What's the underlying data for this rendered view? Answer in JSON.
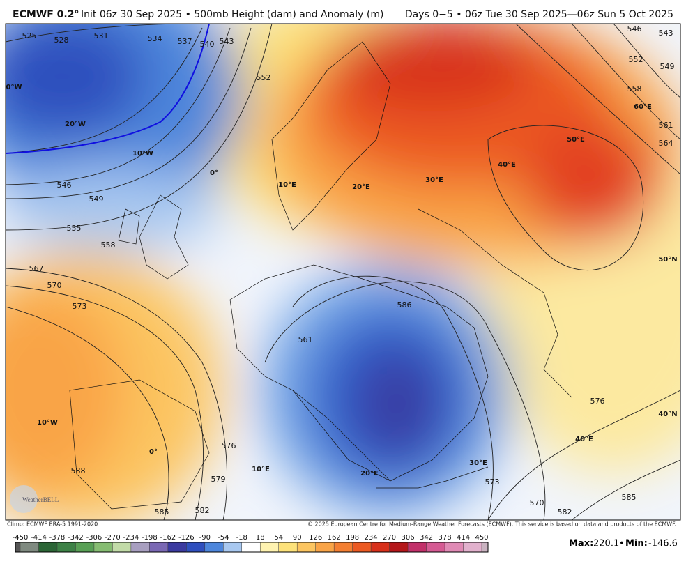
{
  "header": {
    "model": "ECMWF 0.2°",
    "subtitle": "Init 06z 30 Sep 2025 • 500mb Height (dam) and Anomaly (m)",
    "valid": "Days 0−5 • 06z Tue 30 Sep 2025—06z Sun 5 Oct 2025"
  },
  "map": {
    "contour_labels": [
      "525",
      "528",
      "531",
      "534",
      "537",
      "540",
      "543",
      "552",
      "546",
      "549",
      "555",
      "558",
      "567",
      "570",
      "573",
      "561",
      "586",
      "576",
      "579",
      "582",
      "585",
      "588",
      "573",
      "576",
      "570",
      "582",
      "585",
      "546",
      "543",
      "552",
      "549",
      "558",
      "561",
      "564"
    ],
    "graticule_labels": [
      "0°W",
      "20°W",
      "10°W",
      "0°",
      "10°E",
      "20°E",
      "30°E",
      "40°E",
      "50°E",
      "60°E",
      "50°N",
      "40°N",
      "10°W",
      "0°",
      "10°E",
      "20°E",
      "30°E",
      "40°E"
    ],
    "logo": "WeatherBELL"
  },
  "footer": {
    "climo": "Climo: ECMWF ERA-5 1991-2020",
    "copyright": "© 2025 European Centre for Medium-Range Weather Forecasts (ECMWF). This service is based on data and products of the ECMWF."
  },
  "colorbar": {
    "ticks": [
      -450,
      -414,
      -378,
      -342,
      -306,
      -270,
      -234,
      -198,
      -162,
      -126,
      -90,
      -54,
      -18,
      18,
      54,
      90,
      126,
      162,
      198,
      234,
      270,
      306,
      342,
      378,
      414,
      450
    ],
    "colors": [
      "#555555",
      "#7f8a80",
      "#2b6636",
      "#3d8246",
      "#58a055",
      "#86bd72",
      "#c2dba8",
      "#a89fc0",
      "#7a68b4",
      "#3b3aa0",
      "#2f4fbe",
      "#4d86dc",
      "#a8c8f0",
      "#ffffff",
      "#fff3b0",
      "#fde27a",
      "#fcc560",
      "#f9a447",
      "#f47f32",
      "#ec5a22",
      "#d8301a",
      "#b5171a",
      "#c2306a",
      "#d55a93",
      "#e08ab5",
      "#e2b1cd",
      "#c9b3c0"
    ]
  },
  "stats": {
    "max_label": "Max:",
    "max": 220.1,
    "min_label": "Min:",
    "min": -146.6
  }
}
